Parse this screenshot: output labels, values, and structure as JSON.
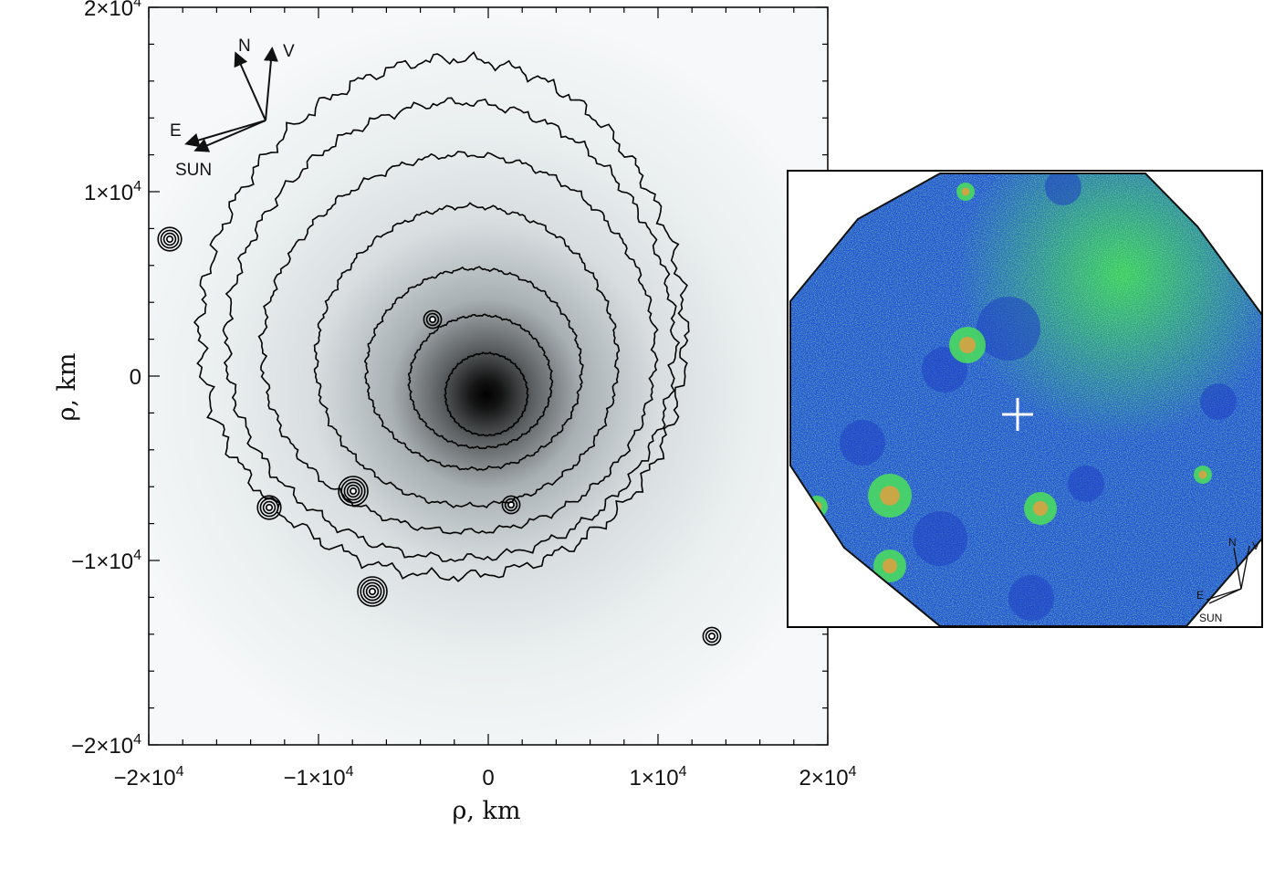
{
  "figure": {
    "left_panel": {
      "x_axis": {
        "label": "ρ, km",
        "range": [
          -20000,
          20000
        ]
      },
      "y_axis": {
        "label": "ρ, km",
        "range": [
          -20000,
          20000
        ]
      },
      "x_ticks": [
        {
          "value": -20000,
          "mantissa": "−2×10",
          "exp": "4"
        },
        {
          "value": -10000,
          "mantissa": "−1×10",
          "exp": "4"
        },
        {
          "value": 0,
          "mantissa": "0",
          "exp": ""
        },
        {
          "value": 10000,
          "mantissa": "1×10",
          "exp": "4"
        },
        {
          "value": 20000,
          "mantissa": "2×10",
          "exp": "4"
        }
      ],
      "y_ticks": [
        {
          "value": 20000,
          "mantissa": "2×10",
          "exp": "4"
        },
        {
          "value": 10000,
          "mantissa": "1×10",
          "exp": "4"
        },
        {
          "value": 0,
          "mantissa": "0",
          "exp": ""
        },
        {
          "value": -10000,
          "mantissa": "−1×10",
          "exp": "4"
        },
        {
          "value": -20000,
          "mantissa": "−2×10",
          "exp": "4"
        }
      ],
      "compass": {
        "north": "N",
        "velocity": "V",
        "east": "E",
        "sun": "SUN"
      },
      "colors": {
        "nucleus": "#000000",
        "background": "#f4f6f7",
        "contour": "#000000"
      }
    },
    "inset": {
      "compass": {
        "north": "N",
        "velocity": "V",
        "east": "E",
        "sun": "SUN"
      },
      "colors": {
        "field": "#2350d8",
        "emission": "#3ee04a",
        "marker": "#ffffff",
        "frame": "#000000"
      }
    }
  }
}
